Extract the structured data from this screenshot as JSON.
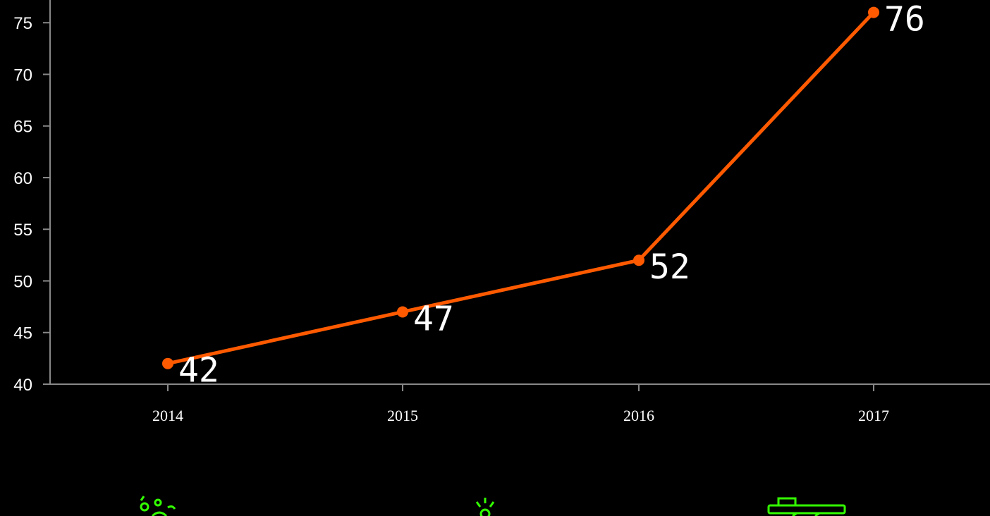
{
  "chart_data": {
    "type": "line",
    "categories": [
      "2014",
      "2015",
      "2016",
      "2017"
    ],
    "values": [
      42,
      47,
      52,
      76
    ],
    "data_labels": [
      "42",
      "47",
      "52",
      "76"
    ],
    "yticks": [
      40,
      45,
      50,
      55,
      60,
      65,
      70,
      75
    ],
    "ylim": [
      40,
      77.2
    ],
    "grid": false,
    "legend": "none",
    "title": "",
    "xlabel": "",
    "ylabel": ""
  },
  "colors": {
    "background": "#000000",
    "line": "#ff5a00",
    "text": "#ffffff",
    "axis": "#888888",
    "icon_accent": "#33ff00"
  },
  "icons": [
    "people-group-icon",
    "lightbulb-icon",
    "tank-icon"
  ]
}
